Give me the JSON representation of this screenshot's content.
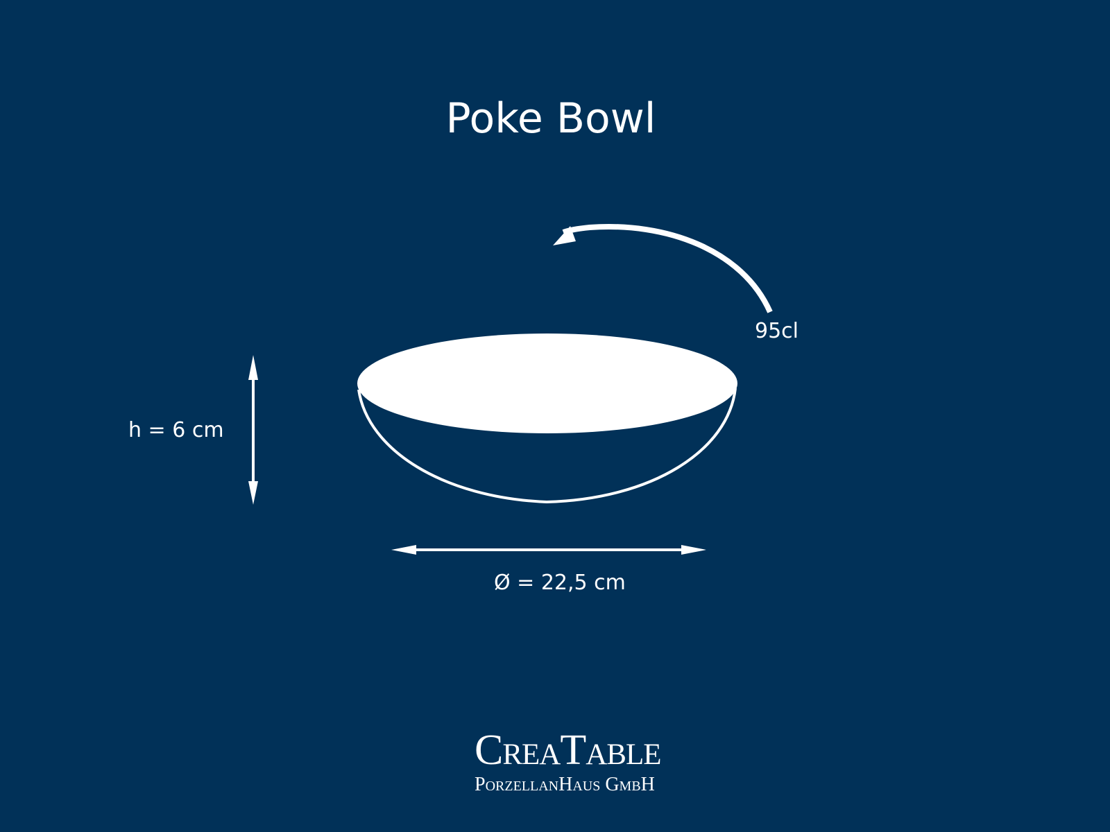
{
  "title": "Poke Bowl",
  "volume": "95cl",
  "height": "h = 6 cm",
  "diameter": "Ø = 22,5 cm",
  "logo": {
    "line1": "CreaTable",
    "line2": "PorzellanHaus GmbH"
  },
  "colors": {
    "background": "#013158",
    "foreground": "#ffffff"
  }
}
